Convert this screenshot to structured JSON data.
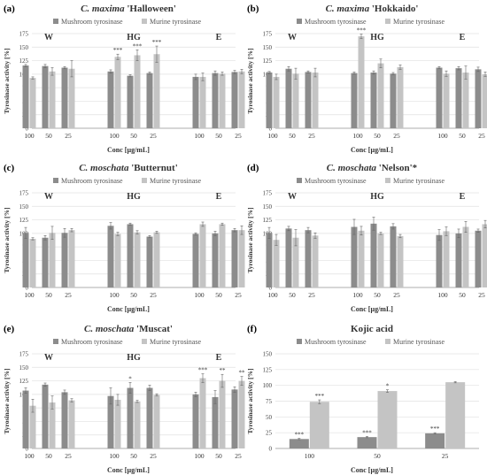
{
  "colors": {
    "mushroom": "#8c8c8c",
    "murine": "#c4c4c4",
    "grid": "#e0e0e0",
    "axis": "#9a9a9a",
    "text": "#333333"
  },
  "legend": {
    "series": [
      "Mushroom tyrosinase",
      "Murine tyrosinase"
    ]
  },
  "shared": {
    "ylabel": "Tyrosinase activity [%]",
    "xlabel": "Conc [µg/mL]",
    "yticks": [
      "0",
      "25",
      "50",
      "75",
      "100",
      "125",
      "150",
      "175"
    ]
  },
  "chart_data": [
    {
      "type": "bar",
      "panel_label": "(a)",
      "title_italic": "C. maxima",
      "title_rest": " 'Halloween'",
      "ylabel": "Tyrosinase activity [%]",
      "xlabel": "Conc [µg/mL]",
      "ylim": [
        0,
        175
      ],
      "group_labels": [
        "W",
        "HG",
        "E"
      ],
      "categories": [
        "100",
        "50",
        "25",
        "100",
        "50",
        "25",
        "100",
        "50",
        "25"
      ],
      "series": [
        {
          "name": "Mushroom tyrosinase",
          "values": [
            116,
            115,
            112,
            105,
            97,
            102,
            95,
            102,
            104
          ],
          "errors": [
            2,
            3,
            2,
            3,
            2,
            2,
            5,
            4,
            3
          ],
          "stars": [
            "",
            "",
            "",
            "",
            "",
            "",
            "",
            "",
            ""
          ]
        },
        {
          "name": "Murine tyrosinase",
          "values": [
            93,
            105,
            110,
            132,
            135,
            137,
            95,
            101,
            105
          ],
          "errors": [
            2,
            7,
            15,
            5,
            10,
            15,
            7,
            3,
            4
          ],
          "stars": [
            "",
            "",
            "",
            "***",
            "***",
            "***",
            "",
            "",
            ""
          ]
        }
      ],
      "grid": true,
      "legend": "top"
    },
    {
      "type": "bar",
      "panel_label": "(b)",
      "title_italic": "C. maxima",
      "title_rest": " 'Hokkaido'",
      "ylabel": "Tyrosinase activity [%]",
      "xlabel": "Conc [µg/mL]",
      "ylim": [
        0,
        175
      ],
      "group_labels": [
        "W",
        "HG",
        "E"
      ],
      "categories": [
        "100",
        "50",
        "25",
        "100",
        "50",
        "25",
        "100",
        "50",
        "25"
      ],
      "series": [
        {
          "name": "Mushroom tyrosinase",
          "values": [
            103,
            110,
            104,
            102,
            103,
            101,
            112,
            111,
            109
          ],
          "errors": [
            2,
            4,
            2,
            2,
            3,
            2,
            2,
            3,
            4
          ],
          "stars": [
            "",
            "",
            "",
            "",
            "",
            "",
            "",
            "",
            ""
          ]
        },
        {
          "name": "Murine tyrosinase",
          "values": [
            95,
            101,
            103,
            170,
            120,
            113,
            101,
            103,
            100
          ],
          "errors": [
            5,
            10,
            8,
            4,
            8,
            4,
            5,
            12,
            4
          ],
          "stars": [
            "",
            "",
            "",
            "***",
            "",
            "",
            "",
            "",
            ""
          ]
        }
      ],
      "grid": true,
      "legend": "top"
    },
    {
      "type": "bar",
      "panel_label": "(c)",
      "title_italic": "C. moschata",
      "title_rest": " 'Butternut'",
      "ylabel": "Tyrosinase activity [%]",
      "xlabel": "Conc [µg/mL]",
      "ylim": [
        0,
        175
      ],
      "group_labels": [
        "W",
        "HG",
        "E"
      ],
      "categories": [
        "100",
        "50",
        "25",
        "100",
        "50",
        "25",
        "100",
        "50",
        "25"
      ],
      "series": [
        {
          "name": "Mushroom tyrosinase",
          "values": [
            101,
            92,
            101,
            114,
            117,
            94,
            99,
            100,
            106
          ],
          "errors": [
            10,
            4,
            8,
            6,
            2,
            2,
            2,
            4,
            3
          ],
          "stars": [
            "",
            "",
            "",
            "",
            "",
            "",
            "",
            "",
            ""
          ]
        },
        {
          "name": "Murine tyrosinase",
          "values": [
            90,
            101,
            106,
            99,
            102,
            102,
            117,
            117,
            106
          ],
          "errors": [
            2,
            12,
            3,
            3,
            3,
            2,
            4,
            2,
            8
          ],
          "stars": [
            "",
            "",
            "",
            "",
            "",
            "",
            "",
            "",
            ""
          ]
        }
      ],
      "grid": true,
      "legend": "top"
    },
    {
      "type": "bar",
      "panel_label": "(d)",
      "title_italic": "C. moschata",
      "title_rest": " 'Nelson'*",
      "ylabel": "Tyrosinase activity [%]",
      "xlabel": "Conc [µg/mL]",
      "ylim": [
        0,
        175
      ],
      "group_labels": [
        "W",
        "HG",
        "E"
      ],
      "categories": [
        "100",
        "50",
        "25",
        "100",
        "50",
        "25",
        "100",
        "50",
        "25"
      ],
      "series": [
        {
          "name": "Mushroom tyrosinase",
          "values": [
            101,
            109,
            106,
            112,
            118,
            113,
            97,
            100,
            105
          ],
          "errors": [
            10,
            4,
            5,
            14,
            12,
            5,
            10,
            8,
            3
          ],
          "stars": [
            "",
            "",
            "",
            "",
            "",
            "",
            "",
            "",
            ""
          ]
        },
        {
          "name": "Murine tyrosinase",
          "values": [
            88,
            92,
            96,
            105,
            100,
            95,
            104,
            112,
            117
          ],
          "errors": [
            10,
            15,
            5,
            8,
            2,
            3,
            8,
            10,
            7
          ],
          "stars": [
            "",
            "",
            "",
            "",
            "",
            "",
            "",
            "",
            ""
          ]
        }
      ],
      "grid": true,
      "legend": "top"
    },
    {
      "type": "bar",
      "panel_label": "(e)",
      "title_italic": "C. moschata",
      "title_rest": " 'Muscat'",
      "ylabel": "Tyrosinase activity [%]",
      "xlabel": "Conc [µg/mL]",
      "ylim": [
        0,
        175
      ],
      "group_labels": [
        "W",
        "HG",
        "E"
      ],
      "categories": [
        "100",
        "50",
        "25",
        "100",
        "50",
        "25",
        "100",
        "50",
        "25"
      ],
      "series": [
        {
          "name": "Mushroom tyrosinase",
          "values": [
            107,
            118,
            104,
            97,
            112,
            112,
            100,
            95,
            109
          ],
          "errors": [
            5,
            3,
            4,
            15,
            10,
            5,
            4,
            12,
            5
          ],
          "stars": [
            "",
            "",
            "",
            "",
            "*",
            "",
            "",
            "",
            ""
          ]
        },
        {
          "name": "Murine tyrosinase",
          "values": [
            79,
            85,
            89,
            90,
            87,
            99,
            130,
            125,
            125
          ],
          "errors": [
            12,
            12,
            3,
            10,
            2,
            2,
            8,
            12,
            8
          ],
          "stars": [
            "",
            "",
            "",
            "",
            "",
            "",
            "***",
            "**",
            "**"
          ]
        }
      ],
      "grid": true,
      "legend": "top"
    },
    {
      "type": "bar",
      "panel_label": "(f)",
      "title_italic": "",
      "title_rest": "Kojic acid",
      "ylabel": "Tyrosinase activity [%]",
      "xlabel": "Conc [µg/mL]",
      "ylim": [
        0,
        150
      ],
      "yticks": [
        "0",
        "25",
        "50",
        "75",
        "100",
        "125",
        "150"
      ],
      "group_labels": [],
      "categories": [
        "100",
        "50",
        "25"
      ],
      "series": [
        {
          "name": "Mushroom tyrosinase",
          "values": [
            15,
            18,
            24
          ],
          "errors": [
            1,
            1,
            1
          ],
          "stars": [
            "***",
            "***",
            "***"
          ]
        },
        {
          "name": "Murine tyrosinase",
          "values": [
            74,
            91,
            105
          ],
          "errors": [
            3,
            2,
            1
          ],
          "stars": [
            "***",
            "*",
            ""
          ]
        }
      ],
      "grid": true,
      "legend": "top"
    }
  ]
}
